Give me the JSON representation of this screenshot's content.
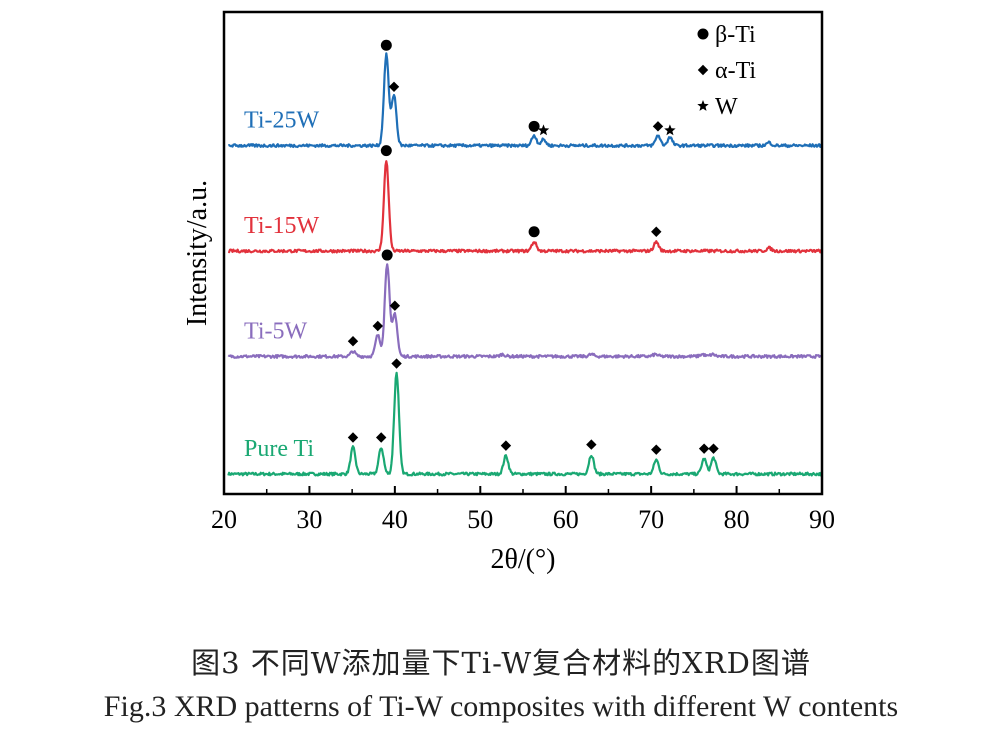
{
  "chart_data": {
    "type": "line",
    "title": "",
    "xlabel": "2θ/(°)",
    "ylabel": "Intensity/a.u.",
    "xlim": [
      20,
      90
    ],
    "xticks": [
      20,
      30,
      40,
      50,
      60,
      70,
      80,
      90
    ],
    "xtick_labels": [
      "20",
      "30",
      "40",
      "50",
      "60",
      "70",
      "80",
      "90"
    ],
    "y_units": "arbitrary, stacked",
    "legend": {
      "placement": "top-right",
      "entries": [
        {
          "marker": "circle",
          "label": "β-Ti"
        },
        {
          "marker": "diamond",
          "label": "α-Ti"
        },
        {
          "marker": "star",
          "label": "W"
        }
      ]
    },
    "series": [
      {
        "name": "Pure Ti",
        "color": "#1aa873",
        "baseline": 0,
        "peaks": [
          [
            35.1,
            2.6
          ],
          [
            38.4,
            2.6
          ],
          [
            40.2,
            10.0
          ],
          [
            53.0,
            1.8
          ],
          [
            63.0,
            1.9
          ],
          [
            70.6,
            1.4
          ],
          [
            76.2,
            1.5
          ],
          [
            77.3,
            1.6
          ]
        ],
        "markers": [
          {
            "type": "diamond",
            "x": 35.1,
            "y": 3.6
          },
          {
            "type": "diamond",
            "x": 38.4,
            "y": 3.6
          },
          {
            "type": "diamond",
            "x": 40.2,
            "y": 10.9
          },
          {
            "type": "diamond",
            "x": 53.0,
            "y": 2.8
          },
          {
            "type": "diamond",
            "x": 63.0,
            "y": 2.9
          },
          {
            "type": "diamond",
            "x": 70.6,
            "y": 2.4
          },
          {
            "type": "diamond",
            "x": 76.2,
            "y": 2.5
          },
          {
            "type": "diamond",
            "x": 77.3,
            "y": 2.5
          }
        ]
      },
      {
        "name": "Ti-5W",
        "color": "#8a6dbd",
        "baseline": 11.6,
        "peaks": [
          [
            35.1,
            0.5
          ],
          [
            38.0,
            2.1
          ],
          [
            39.1,
            9.2
          ],
          [
            40.0,
            4.2
          ],
          [
            52.6,
            0.2
          ],
          [
            63.0,
            0.2
          ],
          [
            70.5,
            0.2
          ],
          [
            76.0,
            0.2
          ],
          [
            77.2,
            0.2
          ]
        ],
        "markers": [
          {
            "type": "diamond",
            "x": 35.1,
            "y": 13.1
          },
          {
            "type": "diamond",
            "x": 38.0,
            "y": 14.6
          },
          {
            "type": "circle",
            "x": 39.1,
            "y": 21.6
          },
          {
            "type": "diamond",
            "x": 40.0,
            "y": 16.6
          }
        ]
      },
      {
        "name": "Ti-15W",
        "color": "#e2323c",
        "baseline": 22.0,
        "peaks": [
          [
            39.0,
            8.9
          ],
          [
            56.3,
            0.9
          ],
          [
            70.6,
            0.9
          ],
          [
            83.8,
            0.3
          ]
        ],
        "markers": [
          {
            "type": "circle",
            "x": 39.0,
            "y": 31.9
          },
          {
            "type": "circle",
            "x": 56.3,
            "y": 23.9
          },
          {
            "type": "diamond",
            "x": 70.6,
            "y": 23.9
          }
        ]
      },
      {
        "name": "Ti-25W",
        "color": "#1f6fb7",
        "baseline": 32.4,
        "peaks": [
          [
            39.0,
            9.0
          ],
          [
            39.9,
            5.0
          ],
          [
            56.3,
            1.0
          ],
          [
            57.4,
            0.6
          ],
          [
            70.8,
            1.0
          ],
          [
            72.2,
            0.8
          ],
          [
            83.8,
            0.3
          ]
        ],
        "markers": [
          {
            "type": "circle",
            "x": 39.0,
            "y": 42.3
          },
          {
            "type": "diamond",
            "x": 39.9,
            "y": 38.2
          },
          {
            "type": "circle",
            "x": 56.3,
            "y": 34.3
          },
          {
            "type": "star",
            "x": 57.4,
            "y": 33.9
          },
          {
            "type": "diamond",
            "x": 70.8,
            "y": 34.3
          },
          {
            "type": "star",
            "x": 72.2,
            "y": 33.9
          }
        ]
      }
    ]
  },
  "caption": {
    "chinese": "图3  不同W添加量下Ti-W复合材料的XRD图谱",
    "english": "Fig.3  XRD patterns of Ti-W composites with different W contents"
  }
}
